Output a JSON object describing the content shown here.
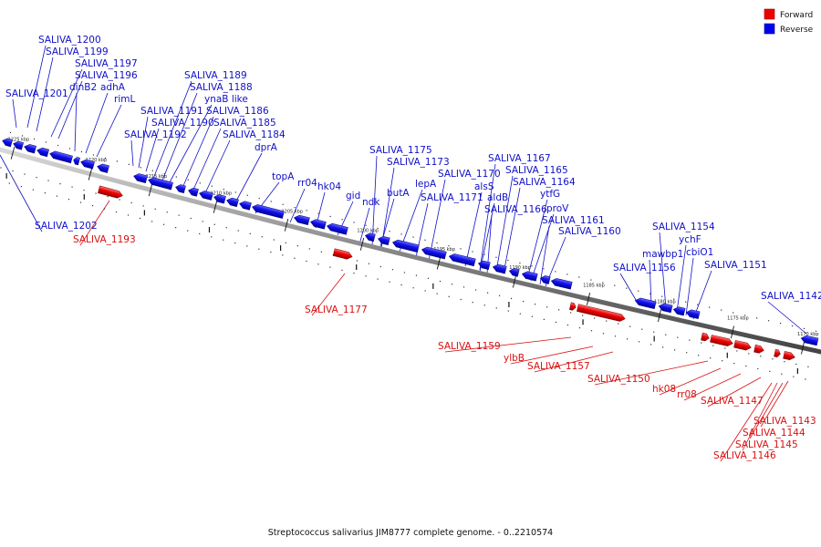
{
  "legend": {
    "forward_label": "Forward",
    "reverse_label": "Reverse",
    "forward_color": "#ee0000",
    "reverse_color": "#0000ee"
  },
  "caption": "Streptococcus salivarius JIM8777 complete genome. - 0..2210574",
  "tick_labels": [
    "1225 kbp",
    "1220 kbp",
    "1215 kbp",
    "1210 kbp",
    "1205 kbp",
    "1200 kbp",
    "1195 kbp",
    "1190 kbp",
    "1185 kbp",
    "1180 kbp",
    "1175 kbp",
    "1170 kbp"
  ],
  "reverse_labels": [
    "SALIVA_1200",
    "SALIVA_1199",
    "SALIVA_1197",
    "SALIVA_1196",
    "SALIVA_1201",
    "dinB2",
    "adhA",
    "rimL",
    "SALIVA_1189",
    "SALIVA_1188",
    "ynaB like",
    "SALIVA_1191",
    "SALIVA_1186",
    "SALIVA_1190",
    "SALIVA_1185",
    "SALIVA_1192",
    "SALIVA_1184",
    "dprA",
    "topA",
    "rr04",
    "hk04",
    "gid",
    "ndk",
    "SALIVA_1175",
    "SALIVA_1173",
    "butA",
    "lepA",
    "SALIVA_1170",
    "SALIVA_1171",
    "SALIVA_1167",
    "SALIVA_1165",
    "SALIVA_1164",
    "alsS",
    "aldB",
    "ytfG",
    "SALIVA_1166",
    "proV",
    "SALIVA_1161",
    "SALIVA_1160",
    "SALIVA_1154",
    "mawbp1",
    "ychF",
    "cbiO1",
    "SALIVA_1156",
    "SALIVA_1151",
    "SALIVA_1142",
    "SALIVA_1202"
  ],
  "forward_labels": [
    "SALIVA_1193",
    "SALIVA_1177",
    "SALIVA_1159",
    "ylbB",
    "SALIVA_1157",
    "SALIVA_1150",
    "hk08",
    "rr08",
    "SALIVA_1147",
    "SALIVA_1143",
    "SALIVA_1144",
    "SALIVA_1145",
    "SALIVA_1146"
  ]
}
